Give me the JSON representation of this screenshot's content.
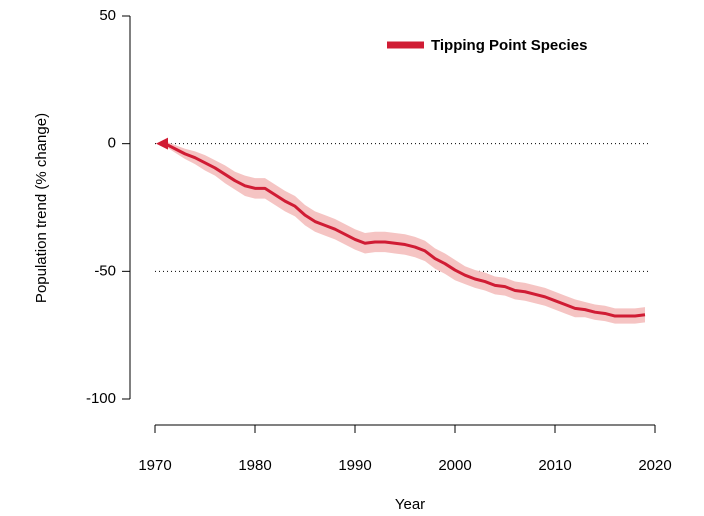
{
  "chart_data": {
    "type": "line",
    "x_label": "Year",
    "y_label": "Population trend (% change)",
    "xlim": [
      1970,
      2020
    ],
    "xticks": [
      1970,
      1980,
      1990,
      2000,
      2010,
      2020
    ],
    "ylim": [
      -100,
      50
    ],
    "yticks": [
      -100,
      -50,
      0,
      50
    ],
    "reference_lines": [
      0,
      -50
    ],
    "series": [
      {
        "name": "Tipping Point Species",
        "color": "#d01c34",
        "band_color": "#f5c4c3",
        "x": [
          1971,
          1972,
          1973,
          1974,
          1975,
          1976,
          1977,
          1978,
          1979,
          1980,
          1981,
          1982,
          1983,
          1984,
          1985,
          1986,
          1987,
          1988,
          1989,
          1990,
          1991,
          1992,
          1993,
          1994,
          1995,
          1996,
          1997,
          1998,
          1999,
          2000,
          2001,
          2002,
          2003,
          2004,
          2005,
          2006,
          2007,
          2008,
          2009,
          2010,
          2011,
          2012,
          2013,
          2014,
          2015,
          2016,
          2017,
          2018,
          2019
        ],
        "values": [
          0,
          -2,
          -4,
          -5.5,
          -7.5,
          -9.5,
          -12,
          -14.5,
          -16.5,
          -17.5,
          -17.5,
          -20,
          -22.5,
          -24.5,
          -28,
          -30.5,
          -32,
          -33.5,
          -35.5,
          -37.5,
          -39,
          -38.5,
          -38.5,
          -39,
          -39.5,
          -40.5,
          -42,
          -45,
          -47,
          -49.5,
          -51.5,
          -53,
          -54,
          -55.5,
          -56,
          -57.5,
          -58,
          -59,
          -60,
          -61.5,
          -63,
          -64.5,
          -65,
          -66,
          -66.5,
          -67.5,
          -67.5,
          -67.5,
          -67
        ],
        "upper": [
          1,
          -0.5,
          -2,
          -3,
          -4.5,
          -6.5,
          -8.5,
          -11,
          -12.5,
          -13.5,
          -13.5,
          -16,
          -18.5,
          -20.5,
          -24,
          -26.5,
          -28,
          -29.5,
          -31.5,
          -33.5,
          -35,
          -34.5,
          -34.5,
          -35,
          -35.5,
          -36.5,
          -38,
          -41,
          -43,
          -45.5,
          -48,
          -49.5,
          -50.5,
          -52,
          -52.5,
          -54,
          -54.5,
          -55.5,
          -56.5,
          -58,
          -59.5,
          -61,
          -62,
          -63,
          -63.5,
          -64.5,
          -64.5,
          -64.5,
          -64
        ],
        "lower": [
          -1,
          -3.5,
          -6,
          -8,
          -10.5,
          -12.5,
          -15.5,
          -18,
          -20.5,
          -21.5,
          -21.5,
          -24,
          -26.5,
          -28.5,
          -32,
          -34.5,
          -36,
          -37.5,
          -39.5,
          -41.5,
          -43,
          -42.5,
          -42.5,
          -43,
          -43.5,
          -44.5,
          -46,
          -49,
          -51,
          -53.5,
          -55,
          -56.5,
          -57.5,
          -59,
          -59.5,
          -61,
          -61.5,
          -62.5,
          -63.5,
          -65,
          -66.5,
          -68,
          -68,
          -69,
          -69.5,
          -70.5,
          -70.5,
          -70.5,
          -70
        ]
      }
    ]
  }
}
